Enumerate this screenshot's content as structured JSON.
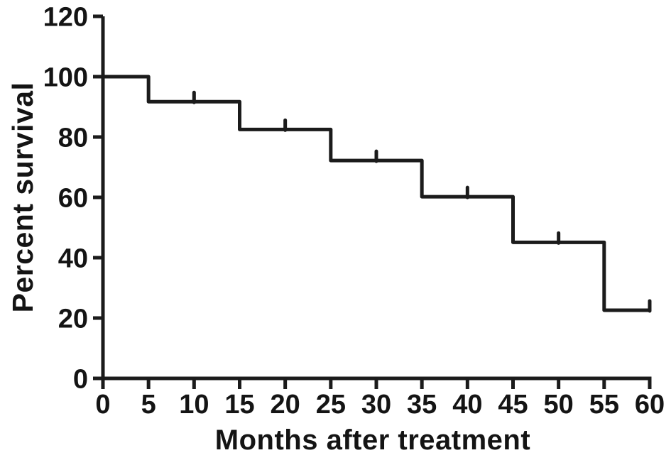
{
  "chart_data": {
    "type": "line",
    "subtype": "kaplan-meier-step-curve",
    "title": "",
    "xlabel": "Months after treatment",
    "ylabel": "Percent survival",
    "xlim": [
      0,
      60
    ],
    "ylim": [
      0,
      120
    ],
    "x_ticks": [
      0,
      5,
      10,
      15,
      20,
      25,
      30,
      35,
      40,
      45,
      50,
      55,
      60
    ],
    "y_ticks": [
      0,
      20,
      40,
      60,
      80,
      100,
      120
    ],
    "grid": false,
    "legend": null,
    "colors": {
      "line": "#1b1b1b",
      "text": "#141414",
      "background": "#ffffff"
    },
    "series": [
      {
        "name": "survival",
        "steps": [
          {
            "t": 0,
            "s": 100
          },
          {
            "t": 5,
            "s": 91.7
          },
          {
            "t": 15,
            "s": 82.5
          },
          {
            "t": 25,
            "s": 72.2
          },
          {
            "t": 35,
            "s": 60.2
          },
          {
            "t": 45,
            "s": 45.1
          },
          {
            "t": 55,
            "s": 22.6
          }
        ],
        "end_t": 60,
        "censor_marks": [
          {
            "t": 10,
            "s": 91.7
          },
          {
            "t": 20,
            "s": 82.5
          },
          {
            "t": 30,
            "s": 72.2
          },
          {
            "t": 40,
            "s": 60.2
          },
          {
            "t": 50,
            "s": 45.1
          },
          {
            "t": 60,
            "s": 22.6
          }
        ]
      }
    ]
  }
}
